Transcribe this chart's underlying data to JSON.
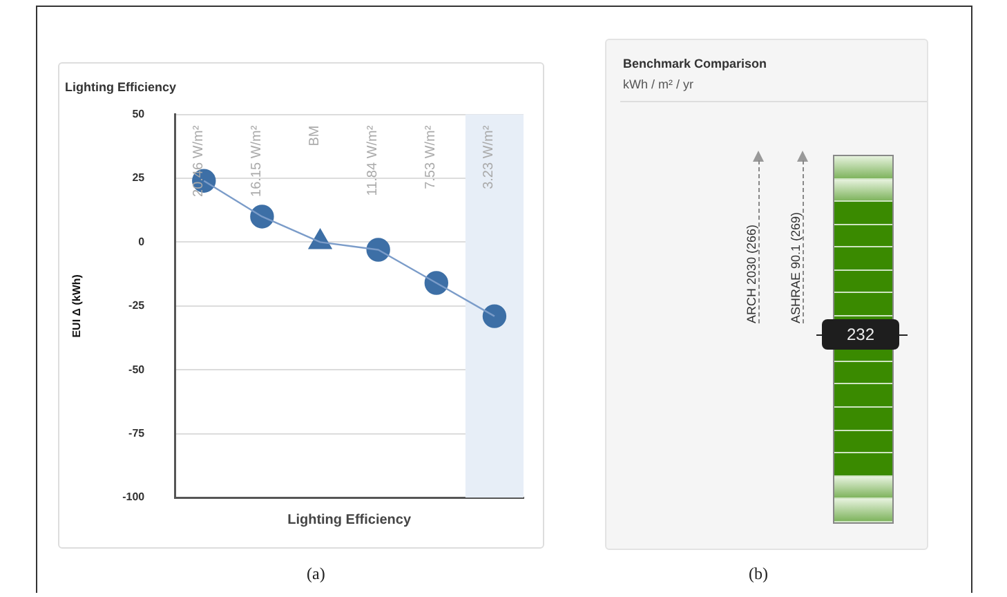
{
  "chart_data": [
    {
      "type": "line",
      "title": "Lighting Efficiency",
      "xlabel": "Lighting Efficiency",
      "ylabel": "EUI Δ (kWh)",
      "categories": [
        "20.46 W/m²",
        "16.15 W/m²",
        "BM",
        "11.84 W/m²",
        "7.53 W/m²",
        "3.23 W/m²"
      ],
      "series": [
        {
          "type": "line",
          "color": "#7b9cc9",
          "marker": "none",
          "values": [
            24,
            10,
            0,
            -3,
            -16,
            -29
          ]
        },
        {
          "type": "scatter",
          "color": "#3d6fa6",
          "marker": "circle",
          "values": [
            24,
            10,
            null,
            -3,
            -16,
            -29
          ]
        },
        {
          "type": "scatter",
          "color": "#3d6fa6",
          "marker": "triangle",
          "x": [
            "BM"
          ],
          "values": [
            0
          ]
        }
      ],
      "ylim": [
        -100,
        50
      ],
      "yticks": [
        -100,
        -75,
        -50,
        -25,
        0,
        25,
        50
      ],
      "grid": "y",
      "legend": false,
      "bands": [
        {
          "axis": "x",
          "from": "3.23 W/m²",
          "to": "3.23 W/m²",
          "color": "#e7eef7"
        }
      ],
      "annotations": [
        "(a)"
      ]
    },
    {
      "type": "other",
      "title": "Benchmark Comparison",
      "subtitle": "kWh / m² / yr",
      "annotations": [
        "ARCH 2030 (266)",
        "ASHRAE 90.1 (269)",
        "232",
        "(b)"
      ]
    }
  ]
}
